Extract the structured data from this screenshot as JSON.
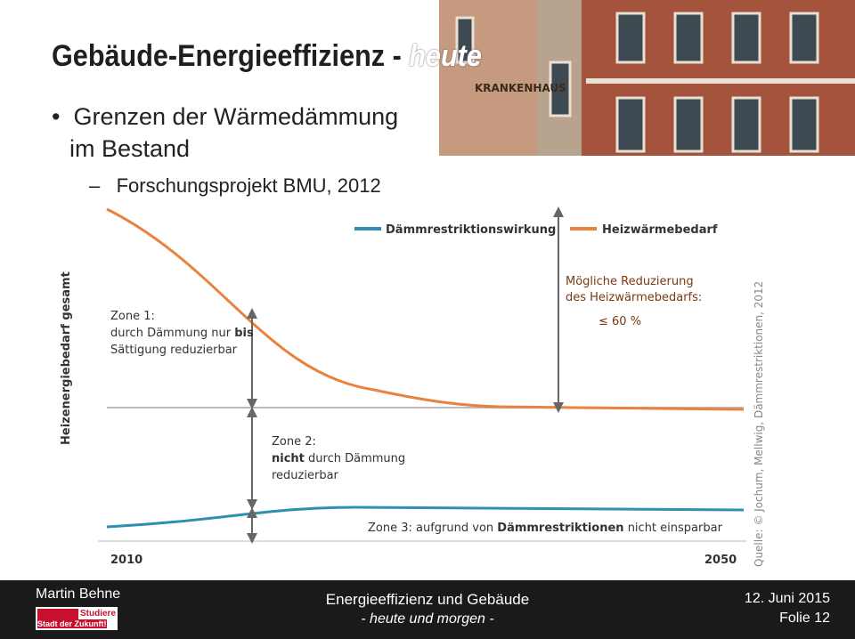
{
  "header": {
    "title": "Gebäude-Energieeffizienz - ",
    "title_emphasis": "heute"
  },
  "bullets": [
    {
      "text": "Grenzen der Wärmedämmung",
      "text2": "im Bestand"
    }
  ],
  "sub_bullets": [
    "Forschungsprojekt BMU, 2012"
  ],
  "image": {
    "sign": "KRANKENHAUS"
  },
  "figure": {
    "y_label": "Heizenergiebedarf gesamt",
    "legend": [
      "Dämmrestriktionswirkung",
      "Heizwärmebedarf"
    ],
    "zone1": {
      "title": "Zone 1:",
      "line1": "durch Dämmung nur ",
      "line1_bold": "bis",
      "line2": "Sättigung reduzierbar"
    },
    "zone2": {
      "title": "Zone 2:",
      "line1_bold": "nicht",
      "line1": " durch Dämmung",
      "line2": "reduzierbar"
    },
    "zone3": {
      "before": "Zone 3: aufgrund von ",
      "bold": "Dämmrestriktionen",
      "after": " nicht einsparbar"
    },
    "reduction": {
      "line1": "Mögliche Reduzierung",
      "line2": "des Heizwärmebedarfs:",
      "percent": "≤ 60 %"
    },
    "x_start": "2010",
    "x_end": "2050",
    "source": "Quelle: © Jochum, Mellwig, Dämmrestriktionen, 2012"
  },
  "footer": {
    "author": "Martin Behne",
    "logo_top": "Studiere",
    "logo_bottom": "Stadt der Zukunft!",
    "title": "Energieeffizienz und Gebäude",
    "subtitle": "- heute und morgen -",
    "date": "12. Juni 2015",
    "slide": "Folie 12"
  }
}
